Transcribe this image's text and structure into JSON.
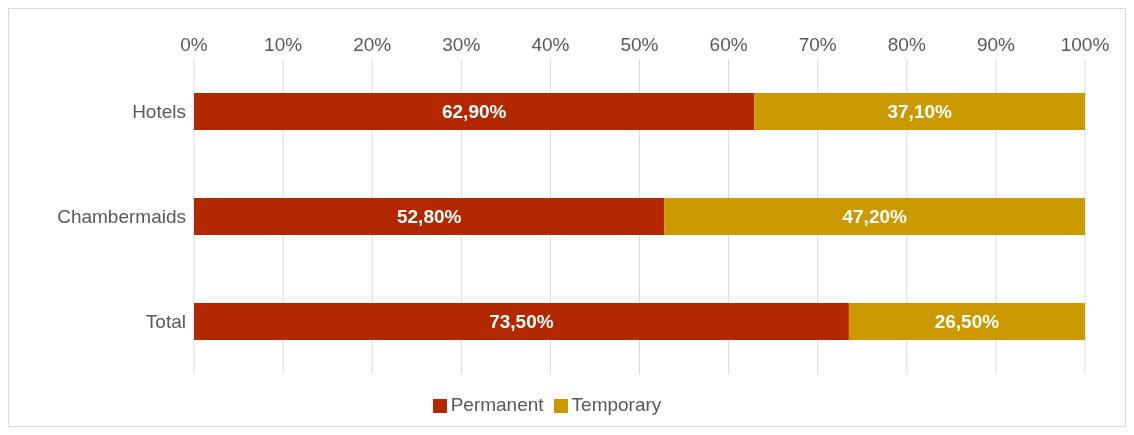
{
  "chart_data": {
    "type": "bar",
    "orientation": "horizontal",
    "stacked": true,
    "categories": [
      "Hotels",
      "Chambermaids",
      "Total"
    ],
    "series": [
      {
        "name": "Permanent",
        "color": "#b22800",
        "values": [
          62.9,
          52.8,
          73.5
        ],
        "value_labels": [
          "62,90%",
          "52,80%",
          "73,50%"
        ]
      },
      {
        "name": "Temporary",
        "color": "#cc9900",
        "values": [
          37.1,
          47.2,
          26.5
        ],
        "value_labels": [
          "37,10%",
          "47,20%",
          "26,50%"
        ]
      }
    ],
    "xlim": [
      0,
      100
    ],
    "xticks": [
      {
        "value": 0,
        "label": "0%"
      },
      {
        "value": 10,
        "label": "10%"
      },
      {
        "value": 20,
        "label": "20%"
      },
      {
        "value": 30,
        "label": "30%"
      },
      {
        "value": 40,
        "label": "40%"
      },
      {
        "value": 50,
        "label": "50%"
      },
      {
        "value": 60,
        "label": "60%"
      },
      {
        "value": 70,
        "label": "70%"
      },
      {
        "value": 80,
        "label": "80%"
      },
      {
        "value": 90,
        "label": "90%"
      },
      {
        "value": 100,
        "label": "100%"
      }
    ],
    "grid": "x",
    "legend": "bottom"
  }
}
